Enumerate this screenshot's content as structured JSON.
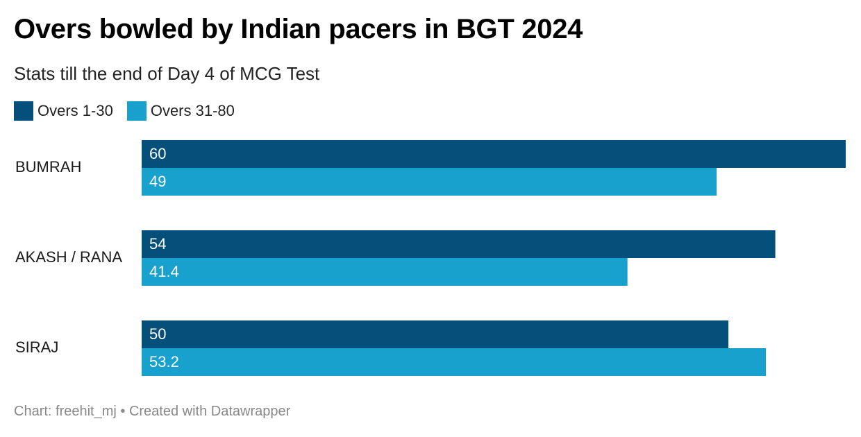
{
  "header": {
    "title": "Overs bowled by Indian pacers in BGT 2024",
    "subtitle": "Stats till the end of Day 4 of MCG Test"
  },
  "legend": [
    {
      "label": "Overs 1-30",
      "color": "#04507a"
    },
    {
      "label": "Overs 31-80",
      "color": "#18a1cd"
    }
  ],
  "chart_data": {
    "type": "bar",
    "orientation": "horizontal",
    "title": "Overs bowled by Indian pacers in BGT 2024",
    "subtitle": "Stats till the end of Day 4 of MCG Test",
    "categories": [
      "BUMRAH",
      "AKASH / RANA",
      "SIRAJ"
    ],
    "series": [
      {
        "name": "Overs 1-30",
        "color": "#04507a",
        "values": [
          60,
          54,
          50
        ],
        "labels": [
          "60",
          "54",
          "50"
        ]
      },
      {
        "name": "Overs 31-80",
        "color": "#18a1cd",
        "values": [
          49,
          41.4,
          53.2
        ],
        "labels": [
          "49",
          "41.4",
          "53.2"
        ]
      }
    ],
    "xlim": [
      0,
      60
    ],
    "grid": false,
    "legend_position": "top-left"
  },
  "footer": {
    "text": "Chart: freehit_mj • Created with Datawrapper"
  }
}
